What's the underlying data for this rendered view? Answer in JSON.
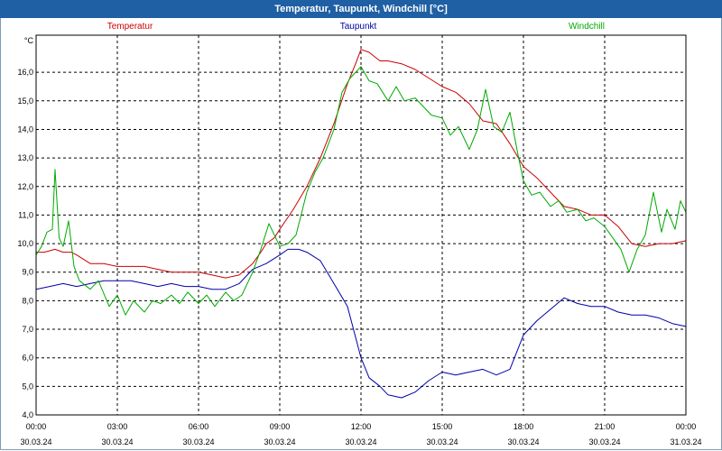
{
  "window": {
    "title": "Temperatur, Taupunkt, Windchill [°C]"
  },
  "colors": {
    "titlebar": "#1f5fa3",
    "grid": "#000000"
  },
  "chart_data": {
    "type": "line",
    "title": "Temperatur, Taupunkt, Windchill [°C]",
    "ylabel": "°C",
    "ylim": [
      4.0,
      17.3
    ],
    "xlim": [
      0,
      24
    ],
    "grid": true,
    "legend_position": "top",
    "y_ticks": [
      "4,0",
      "5,0",
      "6,0",
      "7,0",
      "8,0",
      "9,0",
      "10,0",
      "11,0",
      "12,0",
      "13,0",
      "14,0",
      "15,0",
      "16,0"
    ],
    "x_ticks": [
      {
        "x": 0,
        "time": "00:00",
        "date": "30.03.24"
      },
      {
        "x": 3,
        "time": "03:00",
        "date": "30.03.24"
      },
      {
        "x": 6,
        "time": "06:00",
        "date": "30.03.24"
      },
      {
        "x": 9,
        "time": "09:00",
        "date": "30.03.24"
      },
      {
        "x": 12,
        "time": "12:00",
        "date": "30.03.24"
      },
      {
        "x": 15,
        "time": "15:00",
        "date": "30.03.24"
      },
      {
        "x": 18,
        "time": "18:00",
        "date": "30.03.24"
      },
      {
        "x": 21,
        "time": "21:00",
        "date": "30.03.24"
      },
      {
        "x": 24,
        "time": "00:00",
        "date": "31.03.24"
      }
    ],
    "series": [
      {
        "name": "Temperatur",
        "color": "#cc0000",
        "points": [
          [
            0,
            9.7
          ],
          [
            0.3,
            9.7
          ],
          [
            0.7,
            9.8
          ],
          [
            1.0,
            9.7
          ],
          [
            1.3,
            9.7
          ],
          [
            1.5,
            9.6
          ],
          [
            2.0,
            9.3
          ],
          [
            2.5,
            9.3
          ],
          [
            3.0,
            9.2
          ],
          [
            3.5,
            9.2
          ],
          [
            4.0,
            9.2
          ],
          [
            4.5,
            9.1
          ],
          [
            5.0,
            9.0
          ],
          [
            5.5,
            9.0
          ],
          [
            6.0,
            9.0
          ],
          [
            6.5,
            8.9
          ],
          [
            7.0,
            8.8
          ],
          [
            7.5,
            8.9
          ],
          [
            8.0,
            9.3
          ],
          [
            8.3,
            9.7
          ],
          [
            8.5,
            10.0
          ],
          [
            8.8,
            10.2
          ],
          [
            9.0,
            10.5
          ],
          [
            9.5,
            11.2
          ],
          [
            10.0,
            12.0
          ],
          [
            10.5,
            13.0
          ],
          [
            11.0,
            14.2
          ],
          [
            11.5,
            15.6
          ],
          [
            11.8,
            16.3
          ],
          [
            12.0,
            16.8
          ],
          [
            12.3,
            16.7
          ],
          [
            12.7,
            16.4
          ],
          [
            13.0,
            16.4
          ],
          [
            13.5,
            16.3
          ],
          [
            14.0,
            16.1
          ],
          [
            14.5,
            15.8
          ],
          [
            15.0,
            15.5
          ],
          [
            15.5,
            15.3
          ],
          [
            16.0,
            14.9
          ],
          [
            16.5,
            14.3
          ],
          [
            17.0,
            14.2
          ],
          [
            17.5,
            13.5
          ],
          [
            18.0,
            12.7
          ],
          [
            18.5,
            12.3
          ],
          [
            19.0,
            11.8
          ],
          [
            19.5,
            11.3
          ],
          [
            20.0,
            11.2
          ],
          [
            20.5,
            11.0
          ],
          [
            21.0,
            11.0
          ],
          [
            21.5,
            10.6
          ],
          [
            22.0,
            10.0
          ],
          [
            22.5,
            9.9
          ],
          [
            23.0,
            10.0
          ],
          [
            23.5,
            10.0
          ],
          [
            24.0,
            10.1
          ]
        ]
      },
      {
        "name": "Taupunkt",
        "color": "#0000aa",
        "points": [
          [
            0,
            8.4
          ],
          [
            0.5,
            8.5
          ],
          [
            1.0,
            8.6
          ],
          [
            1.5,
            8.5
          ],
          [
            2.0,
            8.6
          ],
          [
            2.5,
            8.7
          ],
          [
            3.0,
            8.7
          ],
          [
            3.5,
            8.7
          ],
          [
            4.0,
            8.6
          ],
          [
            4.5,
            8.5
          ],
          [
            5.0,
            8.6
          ],
          [
            5.5,
            8.5
          ],
          [
            6.0,
            8.5
          ],
          [
            6.5,
            8.4
          ],
          [
            7.0,
            8.4
          ],
          [
            7.5,
            8.6
          ],
          [
            8.0,
            9.1
          ],
          [
            8.5,
            9.3
          ],
          [
            9.0,
            9.6
          ],
          [
            9.3,
            9.8
          ],
          [
            9.7,
            9.8
          ],
          [
            10.0,
            9.7
          ],
          [
            10.5,
            9.4
          ],
          [
            11.0,
            8.6
          ],
          [
            11.5,
            7.8
          ],
          [
            12.0,
            6.0
          ],
          [
            12.3,
            5.3
          ],
          [
            12.7,
            5.0
          ],
          [
            13.0,
            4.7
          ],
          [
            13.5,
            4.6
          ],
          [
            14.0,
            4.8
          ],
          [
            14.5,
            5.2
          ],
          [
            15.0,
            5.5
          ],
          [
            15.5,
            5.4
          ],
          [
            16.0,
            5.5
          ],
          [
            16.5,
            5.6
          ],
          [
            17.0,
            5.4
          ],
          [
            17.5,
            5.6
          ],
          [
            18.0,
            6.8
          ],
          [
            18.5,
            7.3
          ],
          [
            19.0,
            7.7
          ],
          [
            19.5,
            8.1
          ],
          [
            20.0,
            7.9
          ],
          [
            20.5,
            7.8
          ],
          [
            21.0,
            7.8
          ],
          [
            21.5,
            7.6
          ],
          [
            22.0,
            7.5
          ],
          [
            22.5,
            7.5
          ],
          [
            23.0,
            7.4
          ],
          [
            23.5,
            7.2
          ],
          [
            24.0,
            7.1
          ]
        ]
      },
      {
        "name": "Windchill",
        "color": "#00aa00",
        "points": [
          [
            0,
            9.6
          ],
          [
            0.2,
            9.9
          ],
          [
            0.4,
            10.4
          ],
          [
            0.6,
            10.5
          ],
          [
            0.7,
            12.6
          ],
          [
            0.85,
            10.2
          ],
          [
            1.0,
            9.9
          ],
          [
            1.2,
            10.8
          ],
          [
            1.4,
            9.2
          ],
          [
            1.6,
            8.7
          ],
          [
            2.0,
            8.4
          ],
          [
            2.3,
            8.7
          ],
          [
            2.7,
            7.8
          ],
          [
            3.0,
            8.2
          ],
          [
            3.3,
            7.5
          ],
          [
            3.6,
            8.0
          ],
          [
            4.0,
            7.6
          ],
          [
            4.3,
            8.0
          ],
          [
            4.6,
            7.9
          ],
          [
            5.0,
            8.2
          ],
          [
            5.3,
            7.9
          ],
          [
            5.6,
            8.3
          ],
          [
            6.0,
            7.9
          ],
          [
            6.3,
            8.2
          ],
          [
            6.6,
            7.8
          ],
          [
            7.0,
            8.3
          ],
          [
            7.3,
            8.0
          ],
          [
            7.6,
            8.2
          ],
          [
            8.0,
            9.0
          ],
          [
            8.3,
            9.8
          ],
          [
            8.6,
            10.7
          ],
          [
            9.0,
            9.9
          ],
          [
            9.3,
            10.0
          ],
          [
            9.6,
            10.3
          ],
          [
            10.0,
            11.8
          ],
          [
            10.3,
            12.5
          ],
          [
            10.6,
            13.0
          ],
          [
            11.0,
            14.0
          ],
          [
            11.3,
            15.3
          ],
          [
            11.6,
            15.8
          ],
          [
            12.0,
            16.2
          ],
          [
            12.3,
            15.7
          ],
          [
            12.6,
            15.6
          ],
          [
            13.0,
            15.0
          ],
          [
            13.3,
            15.5
          ],
          [
            13.6,
            15.0
          ],
          [
            14.0,
            15.1
          ],
          [
            14.3,
            14.8
          ],
          [
            14.6,
            14.5
          ],
          [
            15.0,
            14.4
          ],
          [
            15.3,
            13.8
          ],
          [
            15.6,
            14.1
          ],
          [
            16.0,
            13.3
          ],
          [
            16.3,
            14.0
          ],
          [
            16.6,
            15.4
          ],
          [
            16.9,
            14.1
          ],
          [
            17.2,
            13.9
          ],
          [
            17.5,
            14.6
          ],
          [
            17.8,
            13.1
          ],
          [
            18.0,
            12.2
          ],
          [
            18.3,
            11.7
          ],
          [
            18.6,
            11.8
          ],
          [
            19.0,
            11.3
          ],
          [
            19.3,
            11.5
          ],
          [
            19.6,
            11.1
          ],
          [
            20.0,
            11.2
          ],
          [
            20.3,
            10.8
          ],
          [
            20.6,
            10.9
          ],
          [
            21.0,
            10.6
          ],
          [
            21.3,
            10.2
          ],
          [
            21.6,
            9.8
          ],
          [
            21.9,
            9.0
          ],
          [
            22.2,
            9.8
          ],
          [
            22.5,
            10.3
          ],
          [
            22.8,
            11.8
          ],
          [
            23.1,
            10.4
          ],
          [
            23.3,
            11.2
          ],
          [
            23.6,
            10.5
          ],
          [
            23.8,
            11.5
          ],
          [
            24.0,
            11.1
          ]
        ]
      }
    ]
  }
}
